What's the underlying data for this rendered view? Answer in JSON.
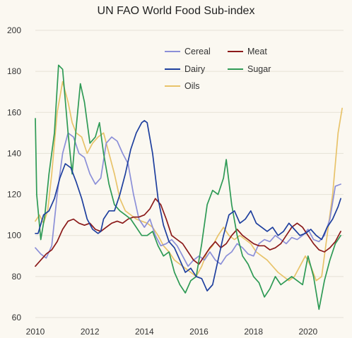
{
  "chart_data": {
    "type": "line",
    "title": "UN FAO World Food Sub-index",
    "xlabel": "",
    "ylabel": "",
    "xlim": [
      2010,
      2021.3
    ],
    "ylim": [
      60,
      200
    ],
    "xticks": [
      2010,
      2012,
      2014,
      2016,
      2018,
      2020
    ],
    "yticks": [
      60,
      80,
      100,
      120,
      140,
      160,
      180,
      200
    ],
    "xtick_labels": [
      "2010",
      "2012",
      "2014",
      "2016",
      "2018",
      "2020"
    ],
    "ytick_labels": [
      "60",
      "80",
      "100",
      "120",
      "140",
      "160",
      "180",
      "200"
    ],
    "grid": "none",
    "legend_position": "top-right",
    "series": [
      {
        "name": "Cereal",
        "color": "#8b8fd8",
        "points": [
          [
            2010.0,
            94
          ],
          [
            2010.2,
            91
          ],
          [
            2010.4,
            89
          ],
          [
            2010.6,
            95
          ],
          [
            2010.8,
            120
          ],
          [
            2011.0,
            140
          ],
          [
            2011.2,
            150
          ],
          [
            2011.4,
            148
          ],
          [
            2011.6,
            140
          ],
          [
            2011.8,
            138
          ],
          [
            2012.0,
            130
          ],
          [
            2012.2,
            125
          ],
          [
            2012.4,
            128
          ],
          [
            2012.6,
            145
          ],
          [
            2012.8,
            148
          ],
          [
            2013.0,
            146
          ],
          [
            2013.2,
            140
          ],
          [
            2013.4,
            135
          ],
          [
            2013.6,
            120
          ],
          [
            2013.8,
            108
          ],
          [
            2014.0,
            104
          ],
          [
            2014.2,
            108
          ],
          [
            2014.4,
            100
          ],
          [
            2014.6,
            95
          ],
          [
            2014.8,
            96
          ],
          [
            2015.0,
            98
          ],
          [
            2015.2,
            95
          ],
          [
            2015.4,
            90
          ],
          [
            2015.6,
            85
          ],
          [
            2015.8,
            88
          ],
          [
            2016.0,
            90
          ],
          [
            2016.2,
            88
          ],
          [
            2016.4,
            92
          ],
          [
            2016.6,
            88
          ],
          [
            2016.8,
            86
          ],
          [
            2017.0,
            90
          ],
          [
            2017.2,
            92
          ],
          [
            2017.4,
            96
          ],
          [
            2017.6,
            94
          ],
          [
            2017.8,
            91
          ],
          [
            2018.0,
            90
          ],
          [
            2018.2,
            96
          ],
          [
            2018.4,
            98
          ],
          [
            2018.6,
            97
          ],
          [
            2018.8,
            100
          ],
          [
            2019.0,
            98
          ],
          [
            2019.2,
            96
          ],
          [
            2019.4,
            99
          ],
          [
            2019.6,
            98
          ],
          [
            2019.8,
            100
          ],
          [
            2020.0,
            103
          ],
          [
            2020.2,
            98
          ],
          [
            2020.4,
            97
          ],
          [
            2020.6,
            100
          ],
          [
            2020.8,
            108
          ],
          [
            2021.0,
            124
          ],
          [
            2021.2,
            125
          ]
        ]
      },
      {
        "name": "Meat",
        "color": "#8b1a1a",
        "points": [
          [
            2010.0,
            85
          ],
          [
            2010.2,
            88
          ],
          [
            2010.4,
            91
          ],
          [
            2010.6,
            93
          ],
          [
            2010.8,
            97
          ],
          [
            2011.0,
            103
          ],
          [
            2011.2,
            107
          ],
          [
            2011.4,
            108
          ],
          [
            2011.6,
            106
          ],
          [
            2011.8,
            105
          ],
          [
            2012.0,
            106
          ],
          [
            2012.2,
            103
          ],
          [
            2012.4,
            102
          ],
          [
            2012.6,
            104
          ],
          [
            2012.8,
            106
          ],
          [
            2013.0,
            107
          ],
          [
            2013.2,
            106
          ],
          [
            2013.4,
            108
          ],
          [
            2013.6,
            109
          ],
          [
            2013.8,
            109
          ],
          [
            2014.0,
            110
          ],
          [
            2014.2,
            113
          ],
          [
            2014.4,
            118
          ],
          [
            2014.6,
            115
          ],
          [
            2014.8,
            108
          ],
          [
            2015.0,
            100
          ],
          [
            2015.2,
            98
          ],
          [
            2015.4,
            96
          ],
          [
            2015.6,
            92
          ],
          [
            2015.8,
            88
          ],
          [
            2016.0,
            86
          ],
          [
            2016.2,
            90
          ],
          [
            2016.4,
            94
          ],
          [
            2016.6,
            97
          ],
          [
            2016.8,
            94
          ],
          [
            2017.0,
            96
          ],
          [
            2017.2,
            100
          ],
          [
            2017.4,
            103
          ],
          [
            2017.6,
            100
          ],
          [
            2017.8,
            98
          ],
          [
            2018.0,
            96
          ],
          [
            2018.2,
            95
          ],
          [
            2018.4,
            95
          ],
          [
            2018.6,
            93
          ],
          [
            2018.8,
            94
          ],
          [
            2019.0,
            96
          ],
          [
            2019.2,
            100
          ],
          [
            2019.4,
            104
          ],
          [
            2019.6,
            106
          ],
          [
            2019.8,
            104
          ],
          [
            2020.0,
            100
          ],
          [
            2020.2,
            96
          ],
          [
            2020.4,
            93
          ],
          [
            2020.6,
            92
          ],
          [
            2020.8,
            94
          ],
          [
            2021.0,
            97
          ],
          [
            2021.2,
            102
          ]
        ]
      },
      {
        "name": "Dairy",
        "color": "#1e3f9e",
        "points": [
          [
            2010.0,
            101
          ],
          [
            2010.1,
            101
          ],
          [
            2010.3,
            110
          ],
          [
            2010.5,
            112
          ],
          [
            2010.7,
            118
          ],
          [
            2010.9,
            128
          ],
          [
            2011.1,
            135
          ],
          [
            2011.3,
            133
          ],
          [
            2011.5,
            126
          ],
          [
            2011.7,
            118
          ],
          [
            2011.9,
            108
          ],
          [
            2012.1,
            103
          ],
          [
            2012.3,
            101
          ],
          [
            2012.4,
            102
          ],
          [
            2012.5,
            108
          ],
          [
            2012.7,
            112
          ],
          [
            2012.9,
            112
          ],
          [
            2013.1,
            120
          ],
          [
            2013.3,
            130
          ],
          [
            2013.5,
            142
          ],
          [
            2013.7,
            150
          ],
          [
            2013.9,
            155
          ],
          [
            2014.0,
            156
          ],
          [
            2014.1,
            155
          ],
          [
            2014.3,
            140
          ],
          [
            2014.5,
            118
          ],
          [
            2014.7,
            105
          ],
          [
            2014.9,
            97
          ],
          [
            2015.1,
            94
          ],
          [
            2015.3,
            88
          ],
          [
            2015.5,
            82
          ],
          [
            2015.7,
            84
          ],
          [
            2015.9,
            80
          ],
          [
            2016.1,
            79
          ],
          [
            2016.3,
            73
          ],
          [
            2016.5,
            76
          ],
          [
            2016.7,
            88
          ],
          [
            2016.9,
            100
          ],
          [
            2017.1,
            110
          ],
          [
            2017.3,
            112
          ],
          [
            2017.5,
            106
          ],
          [
            2017.7,
            108
          ],
          [
            2017.9,
            112
          ],
          [
            2018.1,
            106
          ],
          [
            2018.3,
            104
          ],
          [
            2018.5,
            102
          ],
          [
            2018.7,
            104
          ],
          [
            2018.9,
            100
          ],
          [
            2019.1,
            102
          ],
          [
            2019.3,
            106
          ],
          [
            2019.5,
            103
          ],
          [
            2019.7,
            100
          ],
          [
            2019.9,
            101
          ],
          [
            2020.1,
            103
          ],
          [
            2020.3,
            100
          ],
          [
            2020.5,
            98
          ],
          [
            2020.7,
            104
          ],
          [
            2020.9,
            108
          ],
          [
            2021.1,
            114
          ],
          [
            2021.2,
            118
          ]
        ]
      },
      {
        "name": "Sugar",
        "color": "#2e9a55",
        "points": [
          [
            2010.0,
            157
          ],
          [
            2010.05,
            120
          ],
          [
            2010.2,
            98
          ],
          [
            2010.35,
            110
          ],
          [
            2010.5,
            130
          ],
          [
            2010.7,
            150
          ],
          [
            2010.85,
            183
          ],
          [
            2011.0,
            181
          ],
          [
            2011.2,
            150
          ],
          [
            2011.35,
            130
          ],
          [
            2011.5,
            153
          ],
          [
            2011.65,
            174
          ],
          [
            2011.8,
            165
          ],
          [
            2012.0,
            145
          ],
          [
            2012.2,
            148
          ],
          [
            2012.35,
            155
          ],
          [
            2012.5,
            140
          ],
          [
            2012.7,
            125
          ],
          [
            2012.9,
            115
          ],
          [
            2013.1,
            112
          ],
          [
            2013.3,
            110
          ],
          [
            2013.5,
            108
          ],
          [
            2013.7,
            104
          ],
          [
            2013.9,
            100
          ],
          [
            2014.1,
            100
          ],
          [
            2014.3,
            102
          ],
          [
            2014.5,
            95
          ],
          [
            2014.7,
            90
          ],
          [
            2014.9,
            92
          ],
          [
            2015.1,
            82
          ],
          [
            2015.3,
            76
          ],
          [
            2015.5,
            72
          ],
          [
            2015.7,
            78
          ],
          [
            2015.9,
            80
          ],
          [
            2016.1,
            96
          ],
          [
            2016.3,
            115
          ],
          [
            2016.5,
            122
          ],
          [
            2016.7,
            120
          ],
          [
            2016.9,
            128
          ],
          [
            2017.0,
            137
          ],
          [
            2017.2,
            115
          ],
          [
            2017.4,
            100
          ],
          [
            2017.6,
            90
          ],
          [
            2017.8,
            86
          ],
          [
            2018.0,
            80
          ],
          [
            2018.2,
            77
          ],
          [
            2018.4,
            70
          ],
          [
            2018.6,
            74
          ],
          [
            2018.8,
            80
          ],
          [
            2019.0,
            76
          ],
          [
            2019.2,
            78
          ],
          [
            2019.4,
            80
          ],
          [
            2019.6,
            78
          ],
          [
            2019.8,
            76
          ],
          [
            2020.0,
            90
          ],
          [
            2020.2,
            80
          ],
          [
            2020.4,
            64
          ],
          [
            2020.6,
            78
          ],
          [
            2020.8,
            88
          ],
          [
            2021.0,
            96
          ],
          [
            2021.2,
            100
          ]
        ]
      },
      {
        "name": "Oils",
        "color": "#e8c36a",
        "points": [
          [
            2010.0,
            107
          ],
          [
            2010.15,
            110
          ],
          [
            2010.3,
            106
          ],
          [
            2010.45,
            112
          ],
          [
            2010.6,
            130
          ],
          [
            2010.8,
            160
          ],
          [
            2011.0,
            175
          ],
          [
            2011.2,
            165
          ],
          [
            2011.35,
            155
          ],
          [
            2011.5,
            150
          ],
          [
            2011.7,
            148
          ],
          [
            2011.9,
            140
          ],
          [
            2012.1,
            145
          ],
          [
            2012.3,
            148
          ],
          [
            2012.5,
            150
          ],
          [
            2012.7,
            140
          ],
          [
            2012.9,
            130
          ],
          [
            2013.1,
            118
          ],
          [
            2013.3,
            112
          ],
          [
            2013.5,
            110
          ],
          [
            2013.7,
            108
          ],
          [
            2013.9,
            107
          ],
          [
            2014.1,
            106
          ],
          [
            2014.3,
            104
          ],
          [
            2014.5,
            100
          ],
          [
            2014.7,
            95
          ],
          [
            2014.9,
            92
          ],
          [
            2015.1,
            88
          ],
          [
            2015.3,
            86
          ],
          [
            2015.5,
            84
          ],
          [
            2015.7,
            82
          ],
          [
            2015.9,
            80
          ],
          [
            2016.1,
            85
          ],
          [
            2016.3,
            92
          ],
          [
            2016.5,
            95
          ],
          [
            2016.7,
            100
          ],
          [
            2016.9,
            104
          ],
          [
            2017.1,
            100
          ],
          [
            2017.3,
            98
          ],
          [
            2017.5,
            100
          ],
          [
            2017.7,
            98
          ],
          [
            2017.9,
            96
          ],
          [
            2018.1,
            92
          ],
          [
            2018.3,
            90
          ],
          [
            2018.5,
            88
          ],
          [
            2018.7,
            85
          ],
          [
            2018.9,
            82
          ],
          [
            2019.1,
            80
          ],
          [
            2019.3,
            78
          ],
          [
            2019.5,
            80
          ],
          [
            2019.7,
            85
          ],
          [
            2019.9,
            90
          ],
          [
            2020.1,
            85
          ],
          [
            2020.3,
            78
          ],
          [
            2020.5,
            80
          ],
          [
            2020.7,
            100
          ],
          [
            2020.9,
            120
          ],
          [
            2021.1,
            150
          ],
          [
            2021.25,
            162
          ]
        ]
      }
    ]
  }
}
